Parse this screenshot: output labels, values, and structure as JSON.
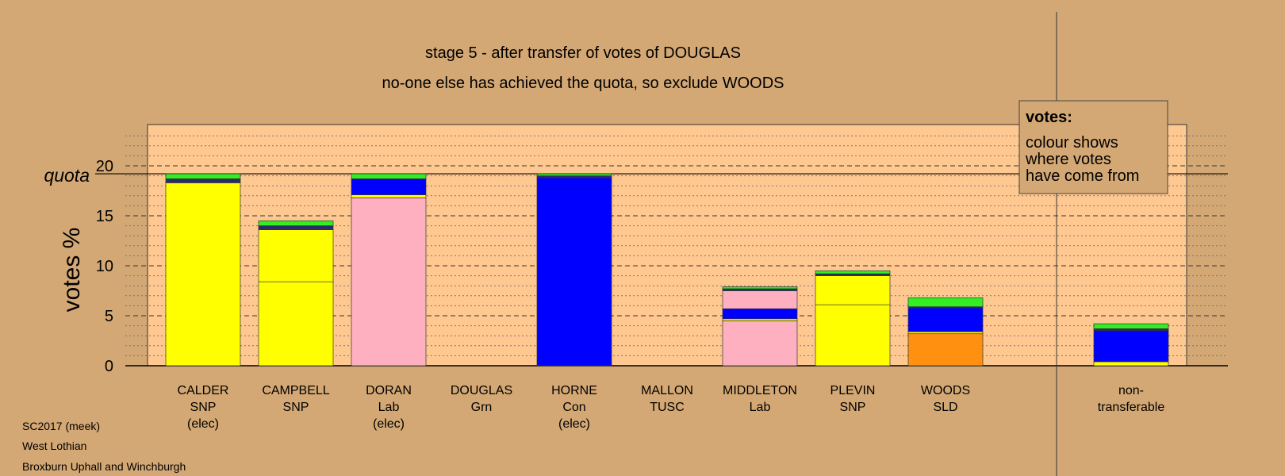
{
  "chart_data": {
    "type": "bar",
    "stacked": true,
    "title": "stage 5 - after transfer of votes of DOUGLAS",
    "subtitle": "no-one else has achieved the quota, so exclude WOODS",
    "ylabel": "votes %",
    "ylim": [
      0,
      24
    ],
    "yticks": [
      "0",
      "5",
      "10",
      "15",
      "20"
    ],
    "quota_label": "quota",
    "quota": 19.2,
    "grid": true,
    "categories": [
      {
        "name": "CALDER",
        "party": "SNP",
        "status": "(elec)"
      },
      {
        "name": "CAMPBELL",
        "party": "SNP",
        "status": ""
      },
      {
        "name": "DORAN",
        "party": "Lab",
        "status": "(elec)"
      },
      {
        "name": "DOUGLAS",
        "party": "Grn",
        "status": ""
      },
      {
        "name": "HORNE",
        "party": "Con",
        "status": "(elec)"
      },
      {
        "name": "MALLON",
        "party": "TUSC",
        "status": ""
      },
      {
        "name": "MIDDLETON",
        "party": "Lab",
        "status": ""
      },
      {
        "name": "PLEVIN",
        "party": "SNP",
        "status": ""
      },
      {
        "name": "WOODS",
        "party": "SLD",
        "status": ""
      }
    ],
    "nontransferable": {
      "label_line1": "non-",
      "label_line2": "transferable"
    },
    "bars": [
      [
        {
          "value": 18.3,
          "color": "#FFFF00"
        },
        {
          "value": 0.4,
          "color": "#2B2B6B"
        },
        {
          "value": 0.5,
          "color": "#33EE22"
        }
      ],
      [
        {
          "value": 8.4,
          "color": "#FFFF00"
        },
        {
          "value": 5.2,
          "color": "#FFFF00"
        },
        {
          "value": 0.4,
          "color": "#2B2B6B"
        },
        {
          "value": 0.5,
          "color": "#33EE22"
        }
      ],
      [
        {
          "value": 16.8,
          "color": "#FFB0C0"
        },
        {
          "value": 0.3,
          "color": "#FFFF00"
        },
        {
          "value": 1.6,
          "color": "#0000FF"
        },
        {
          "value": 0.5,
          "color": "#33EE22"
        }
      ],
      [],
      [
        {
          "value": 18.8,
          "color": "#0000FF"
        },
        {
          "value": 0.2,
          "color": "#2B2B6B"
        },
        {
          "value": 0.2,
          "color": "#33EE22"
        }
      ],
      [],
      [
        {
          "value": 4.5,
          "color": "#FFB0C0"
        },
        {
          "value": 0.2,
          "color": "#FFFF00"
        },
        {
          "value": 1.0,
          "color": "#0000FF"
        },
        {
          "value": 1.8,
          "color": "#FFB0C0"
        },
        {
          "value": 0.2,
          "color": "#2B2B6B"
        },
        {
          "value": 0.2,
          "color": "#33EE22"
        }
      ],
      [
        {
          "value": 6.1,
          "color": "#FFFF00"
        },
        {
          "value": 2.9,
          "color": "#FFFF00"
        },
        {
          "value": 0.2,
          "color": "#2B2B6B"
        },
        {
          "value": 0.3,
          "color": "#33EE22"
        }
      ],
      [
        {
          "value": 3.2,
          "color": "#FF9010"
        },
        {
          "value": 0.2,
          "color": "#FFFF00"
        },
        {
          "value": 2.4,
          "color": "#0000FF"
        },
        {
          "value": 0.1,
          "color": "#2B2B6B"
        },
        {
          "value": 0.9,
          "color": "#33EE22"
        }
      ]
    ],
    "nontransferable_bar": [
      {
        "value": 0.4,
        "color": "#FFFF00"
      },
      {
        "value": 3.1,
        "color": "#0000FF"
      },
      {
        "value": 0.2,
        "color": "#2B2B6B"
      },
      {
        "value": 0.5,
        "color": "#33EE22"
      }
    ],
    "legend": {
      "position": "top-right",
      "title": "votes:",
      "lines": [
        "colour shows",
        "where votes",
        "have come from"
      ]
    }
  },
  "footer": {
    "line1": "SC2017 (meek)",
    "line2": "West Lothian",
    "line3": "Broxburn Uphall and Winchburgh"
  },
  "colors": {
    "background": "#D4A874",
    "plot_area": "#FFC890"
  }
}
